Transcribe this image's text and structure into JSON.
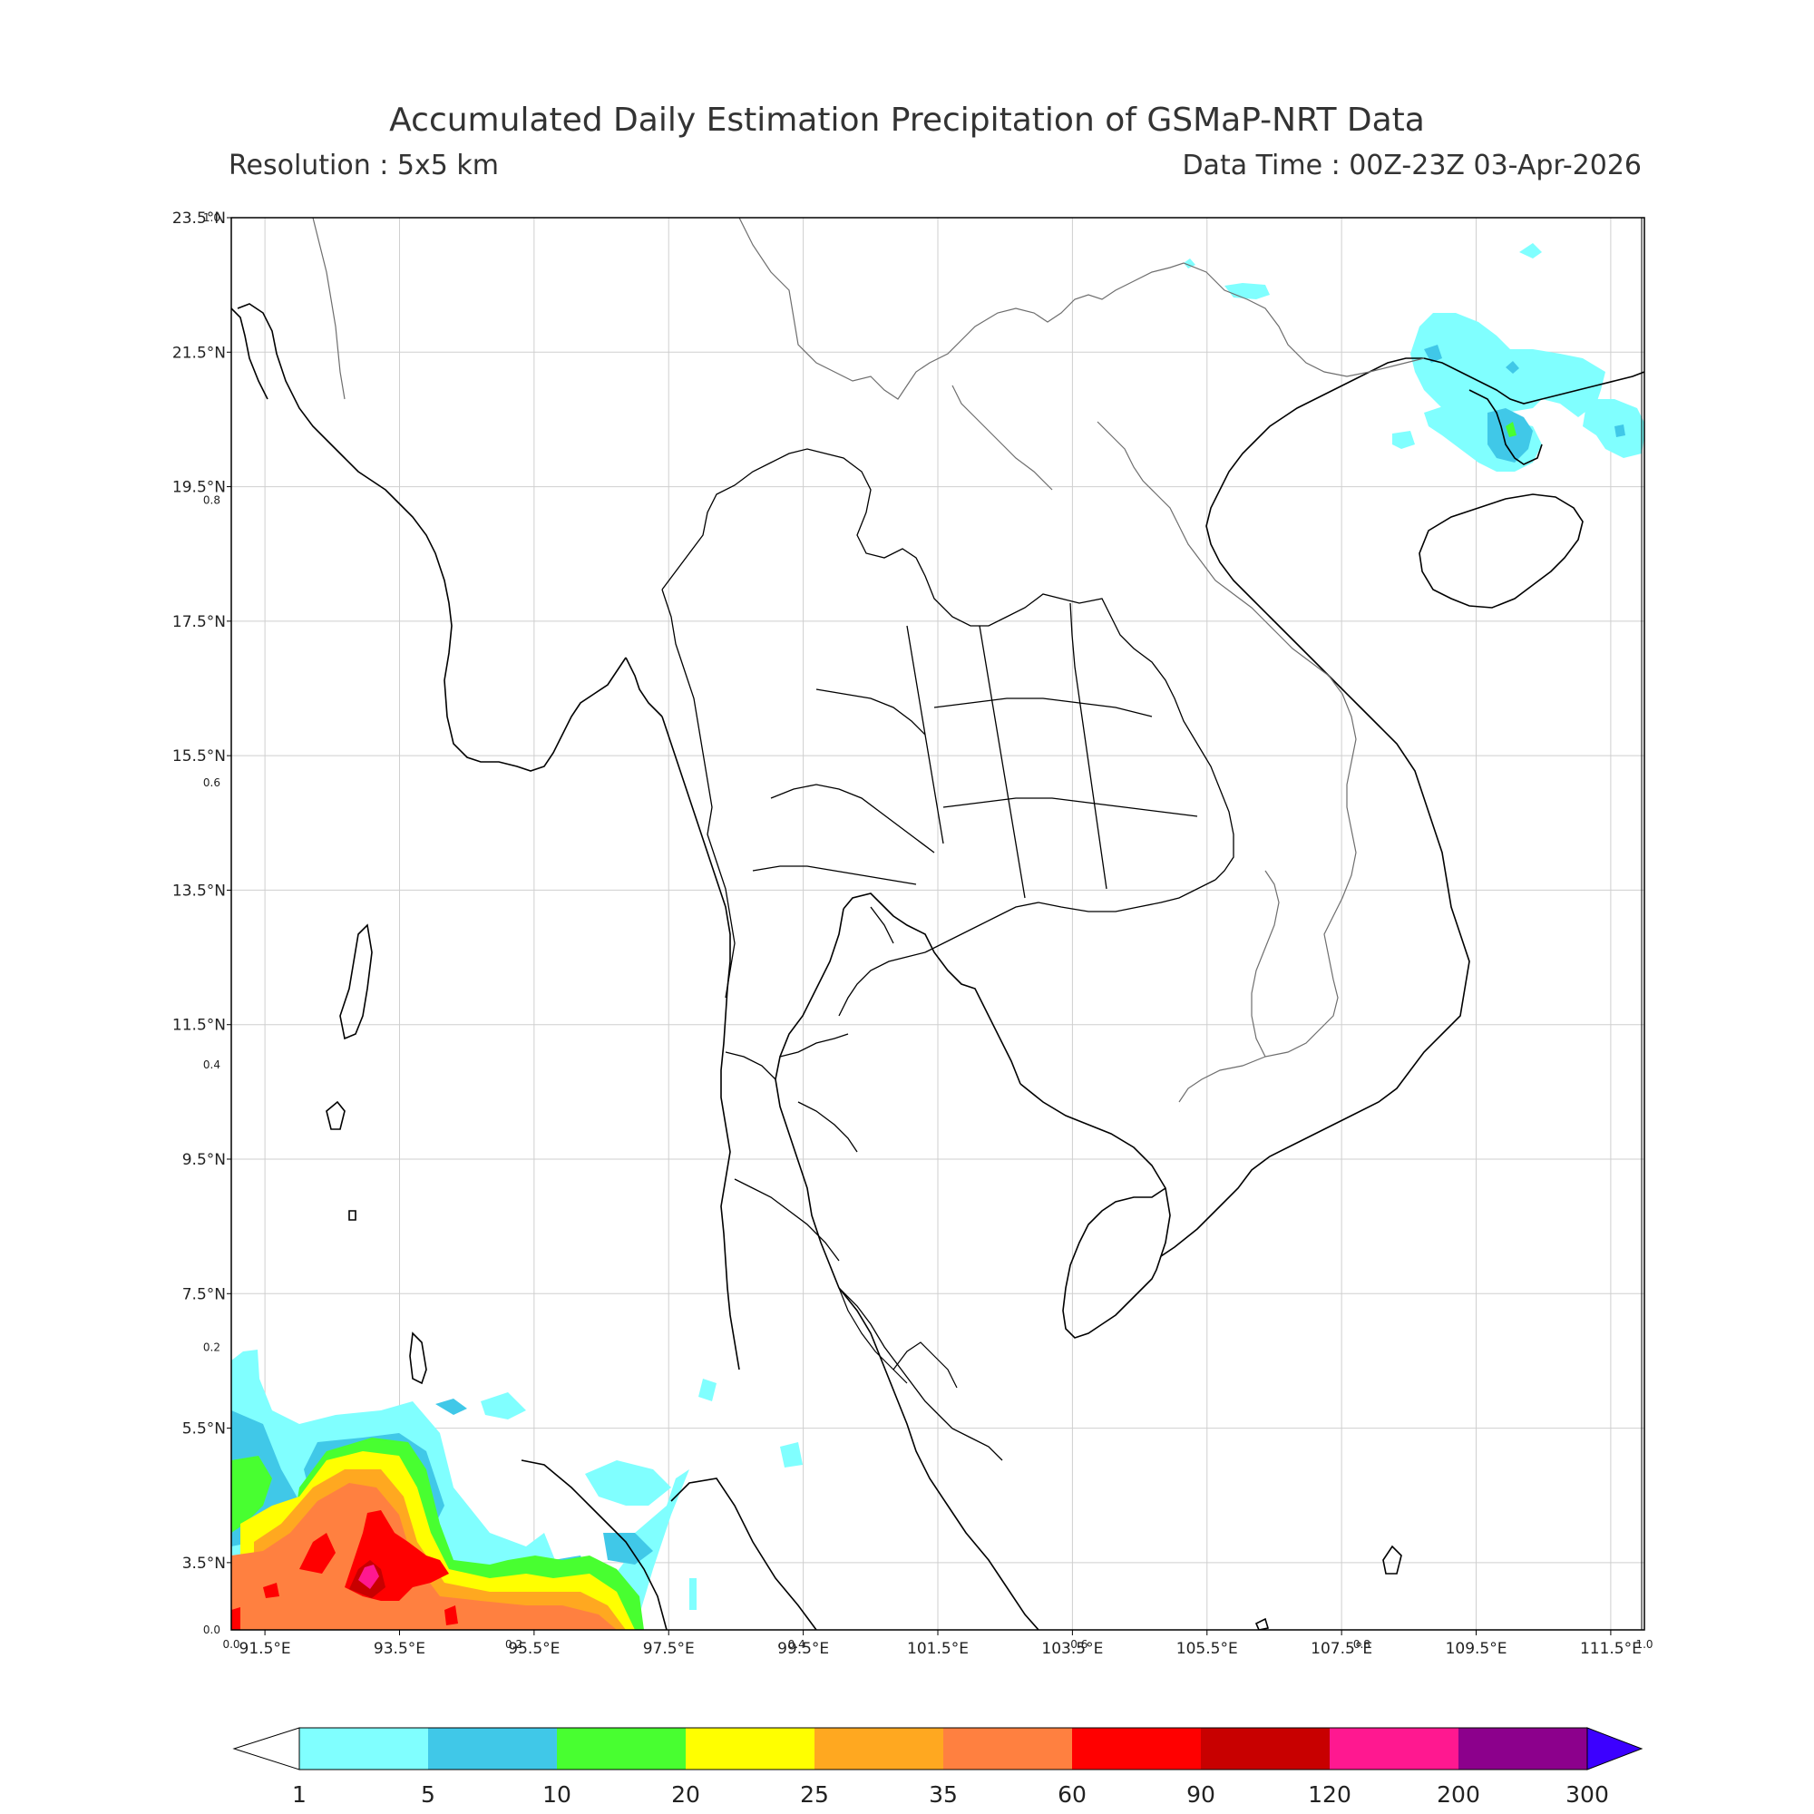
{
  "header": {
    "title": "Accumulated Daily Estimation Precipitation of GSMaP-NRT Data",
    "resolution": "Resolution : 5x5 km",
    "data_time": "Data Time : 00Z-23Z 03-Apr-2026"
  },
  "map": {
    "lon_range": [
      91.0,
      112.0
    ],
    "lat_range": [
      2.5,
      23.5
    ],
    "lon_labels": [
      "91.5°E",
      "93.5°E",
      "95.5°E",
      "97.5°E",
      "99.5°E",
      "101.5°E",
      "103.5°E",
      "105.5°E",
      "107.5°E",
      "109.5°E",
      "111.5°E"
    ],
    "lat_labels": [
      "23.5°N",
      "21.5°N",
      "19.5°N",
      "17.5°N",
      "15.5°N",
      "13.5°N",
      "11.5°N",
      "9.5°N",
      "7.5°N",
      "5.5°N",
      "3.5°N"
    ],
    "frac_ticks_x": [
      "0.0",
      "0.2",
      "0.4",
      "0.6",
      "0.8",
      "1.0"
    ],
    "frac_ticks_y": [
      "0.0",
      "0.2",
      "0.4",
      "0.6",
      "0.8",
      "1.0"
    ]
  },
  "colorbar": {
    "levels": [
      "1",
      "5",
      "10",
      "20",
      "25",
      "35",
      "60",
      "90",
      "120",
      "200",
      "300"
    ],
    "colors": [
      "#80ffff",
      "#40c8e8",
      "#48ff30",
      "#ffff00",
      "#ffa820",
      "#ff8040",
      "#ff0000",
      "#c80000",
      "#ff1890",
      "#8c008c"
    ],
    "over_color": "#3c00ff",
    "under_color": "#ffffff"
  }
}
